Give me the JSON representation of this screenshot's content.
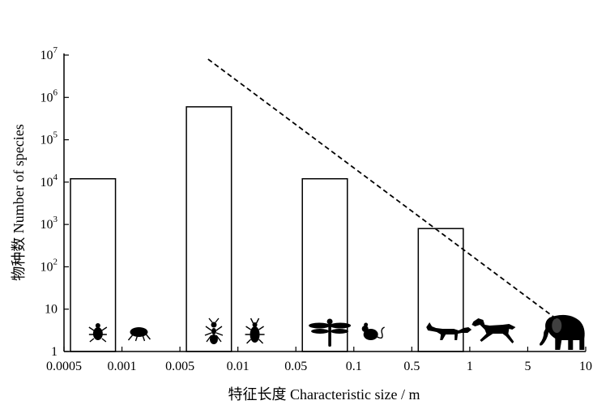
{
  "chart_data": {
    "type": "bar",
    "xlabel": "特征长度 Characteristic size / m",
    "ylabel": "物种数 Number of species",
    "x_scale": "log",
    "y_scale": "log",
    "x_ticks": [
      {
        "value": 0.0005,
        "label": "0.0005"
      },
      {
        "value": 0.001,
        "label": "0.001"
      },
      {
        "value": 0.005,
        "label": "0.005"
      },
      {
        "value": 0.01,
        "label": "0.01"
      },
      {
        "value": 0.05,
        "label": "0.05"
      },
      {
        "value": 0.1,
        "label": "0.1"
      },
      {
        "value": 0.5,
        "label": "0.5"
      },
      {
        "value": 1,
        "label": "1"
      },
      {
        "value": 5,
        "label": "5"
      },
      {
        "value": 10,
        "label": "10"
      }
    ],
    "y_ticks": [
      {
        "value": 1,
        "base": "1",
        "exp": ""
      },
      {
        "value": 10,
        "base": "10",
        "exp": ""
      },
      {
        "value": 100,
        "base": "10",
        "exp": "2"
      },
      {
        "value": 1000,
        "base": "10",
        "exp": "3"
      },
      {
        "value": 10000,
        "base": "10",
        "exp": "4"
      },
      {
        "value": 100000,
        "base": "10",
        "exp": "5"
      },
      {
        "value": 1000000,
        "base": "10",
        "exp": "6"
      },
      {
        "value": 10000000,
        "base": "10",
        "exp": "7"
      }
    ],
    "xlim": [
      0.0005,
      10
    ],
    "ylim": [
      1,
      10000000
    ],
    "bars": [
      {
        "x_range": [
          0.0005,
          0.001
        ],
        "value": 12000
      },
      {
        "x_range": [
          0.005,
          0.01
        ],
        "value": 600000
      },
      {
        "x_range": [
          0.05,
          0.1
        ],
        "value": 12000
      },
      {
        "x_range": [
          0.5,
          1
        ],
        "value": 800
      }
    ],
    "trend_line": {
      "style": "dashed",
      "points": [
        {
          "x": 0.007,
          "y": 8000000
        },
        {
          "x": 7,
          "y": 6
        }
      ]
    },
    "silhouettes": [
      {
        "icon": "louse-icon",
        "x": 0.00075
      },
      {
        "icon": "flea-icon",
        "x": 0.0016
      },
      {
        "icon": "ant-icon",
        "x": 0.0075
      },
      {
        "icon": "beetle-icon",
        "x": 0.016
      },
      {
        "icon": "dragonfly-icon",
        "x": 0.075
      },
      {
        "icon": "mouse-icon",
        "x": 0.16
      },
      {
        "icon": "fox-icon",
        "x": 0.75
      },
      {
        "icon": "horse-icon",
        "x": 1.9
      },
      {
        "icon": "elephant-icon",
        "x": 7.5
      }
    ]
  }
}
